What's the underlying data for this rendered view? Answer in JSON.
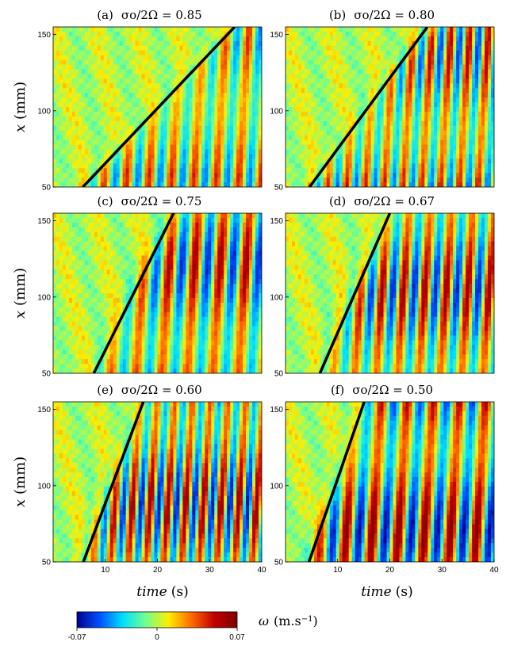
{
  "chart_data": {
    "type": "heatmap",
    "colorbar": {
      "label": "ω (m.s⁻¹)",
      "min": -0.07,
      "max": 0.07,
      "ticks": [
        {
          "value": -0.07,
          "label": "-0.07"
        },
        {
          "value": 0,
          "label": "0"
        },
        {
          "value": 0.07,
          "label": "0.07"
        }
      ],
      "colormap": [
        "#00008f",
        "#0050ff",
        "#00dfff",
        "#70ff90",
        "#ffee00",
        "#ff6a00",
        "#c00000",
        "#800000"
      ]
    },
    "xlabel": "time (s)",
    "xlabel_italic": "time",
    "xlabel_unit": "(s)",
    "ylabel": "x (mm)",
    "ylabel_var": "x",
    "ylabel_unit": "(mm)",
    "xlim": [
      0,
      40
    ],
    "ylim": [
      50,
      155
    ],
    "xticks": [
      10,
      20,
      30,
      40
    ],
    "yticks": [
      50,
      100,
      150
    ],
    "panels": [
      {
        "letter": "(a)",
        "ratio_label": "σo/2Ω = 0.85",
        "ratio": 0.85,
        "front_line": {
          "x1": 5.7,
          "y1": 50,
          "x2": 34.8,
          "y2": 155
        },
        "wave_period_s": 4.3,
        "onset_s": 17,
        "amplitude": 0.045
      },
      {
        "letter": "(b)",
        "ratio_label": "σo/2Ω = 0.80",
        "ratio": 0.8,
        "front_line": {
          "x1": 4.6,
          "y1": 50,
          "x2": 27.2,
          "y2": 155
        },
        "wave_period_s": 3.6,
        "onset_s": 12,
        "amplitude": 0.055
      },
      {
        "letter": "(c)",
        "ratio_label": "σo/2Ω = 0.75",
        "ratio": 0.75,
        "front_line": {
          "x1": 7.8,
          "y1": 50,
          "x2": 23.1,
          "y2": 155
        },
        "wave_period_s": 4.9,
        "onset_s": 10,
        "amplitude": 0.06
      },
      {
        "letter": "(d)",
        "ratio_label": "σo/2Ω = 0.67",
        "ratio": 0.67,
        "front_line": {
          "x1": 6.6,
          "y1": 50,
          "x2": 20.0,
          "y2": 155
        },
        "wave_period_s": 4.1,
        "onset_s": 9,
        "amplitude": 0.062
      },
      {
        "letter": "(e)",
        "ratio_label": "σo/2Ω = 0.60",
        "ratio": 0.6,
        "front_line": {
          "x1": 5.8,
          "y1": 50,
          "x2": 17.3,
          "y2": 155
        },
        "wave_period_s": 3.4,
        "onset_s": 7,
        "amplitude": 0.065
      },
      {
        "letter": "(f)",
        "ratio_label": "σo/2Ω = 0.50",
        "ratio": 0.5,
        "front_line": {
          "x1": 4.5,
          "y1": 50,
          "x2": 15.1,
          "y2": 155
        },
        "wave_period_s": 5.0,
        "onset_s": 6,
        "amplitude": 0.068
      }
    ]
  }
}
